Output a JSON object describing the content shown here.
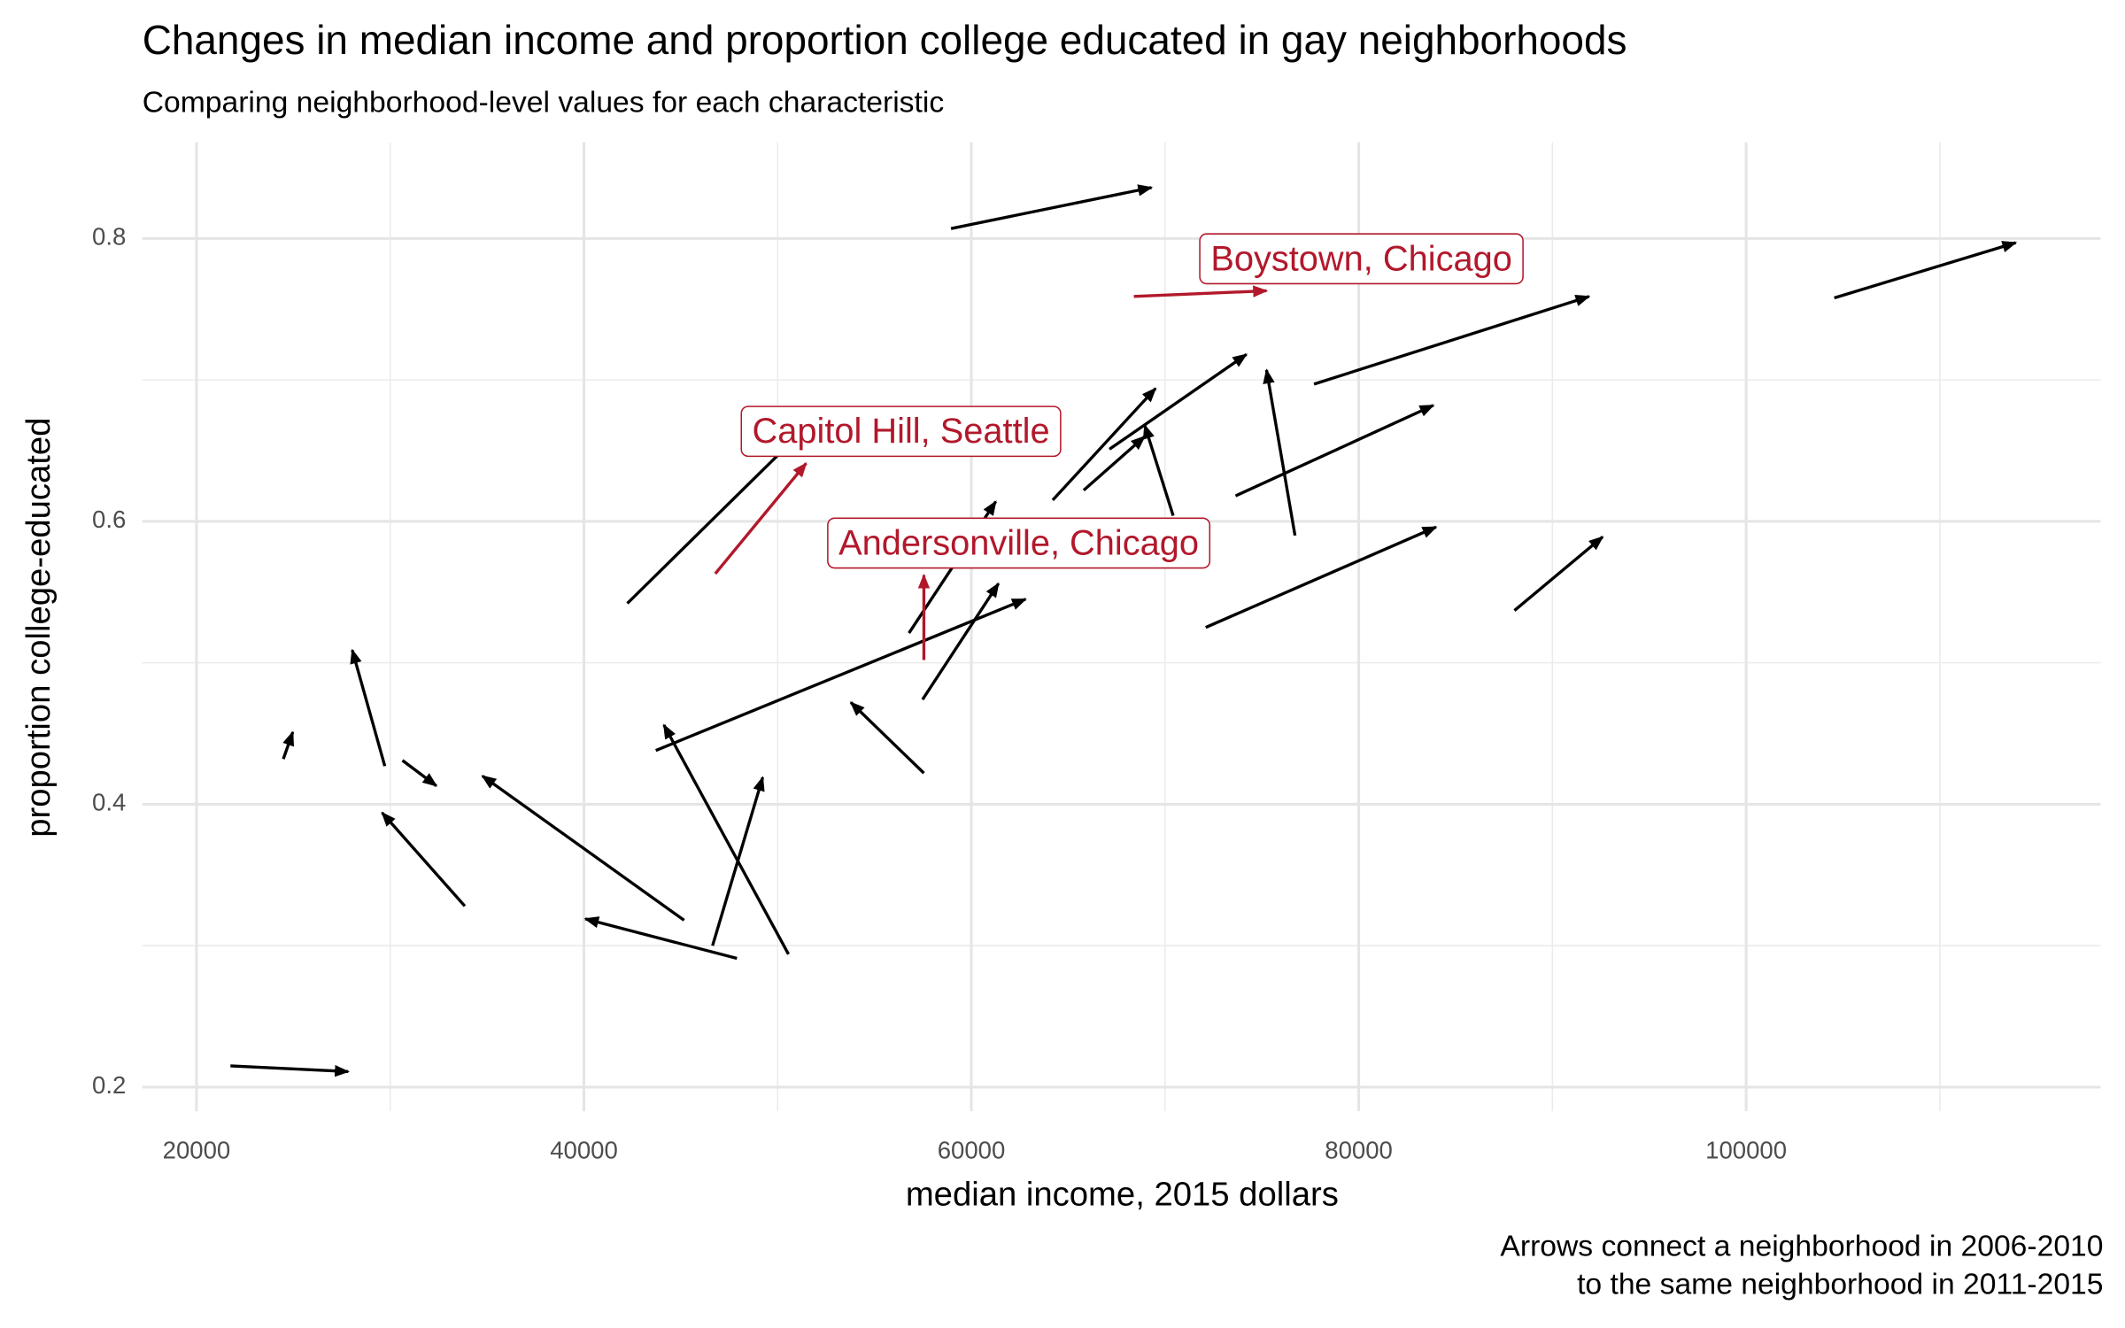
{
  "chart_data": {
    "type": "arrow",
    "title": "Changes in median income and proportion college educated in gay neighborhoods",
    "subtitle": "Comparing neighborhood-level values for each characteristic",
    "x_label": "median income, 2015 dollars",
    "y_label": "proportion college-educated",
    "caption": [
      "Arrows connect a neighborhood in 2006-2010",
      "to the same neighborhood in 2011-2015"
    ],
    "xlim": [
      17200,
      118300
    ],
    "ylim": [
      0.183,
      0.868
    ],
    "xticks": [
      20000,
      40000,
      60000,
      80000,
      100000
    ],
    "yticks": [
      0.2,
      0.4,
      0.6,
      0.8
    ],
    "x_minor_grid": [
      30000,
      50000,
      70000,
      90000,
      110000
    ],
    "y_minor_grid": [
      0.3,
      0.5,
      0.7
    ],
    "grid": true,
    "series": [
      {
        "color": "#000000",
        "x_start": [
          58950,
          21750,
          24480,
          29720,
          30630,
          33850,
          45170,
          47900,
          46640,
          50560,
          42240,
          57550,
          43710,
          57480,
          56780,
          64200,
          67130,
          65800,
          70420,
          76710,
          73640,
          77690,
          72100,
          88040,
          104550
        ],
        "y_start": [
          0.807,
          0.215,
          0.432,
          0.427,
          0.431,
          0.328,
          0.318,
          0.291,
          0.3,
          0.294,
          0.542,
          0.422,
          0.438,
          0.474,
          0.521,
          0.615,
          0.651,
          0.622,
          0.604,
          0.59,
          0.618,
          0.697,
          0.525,
          0.537,
          0.758
        ],
        "x_end": [
          69300,
          27830,
          24970,
          28040,
          32380,
          29580,
          34760,
          40070,
          49230,
          44130,
          50770,
          53780,
          62800,
          61400,
          61260,
          69510,
          74200,
          68950,
          68950,
          75240,
          83850,
          91890,
          83990,
          92590,
          113920
        ],
        "y_end": [
          0.836,
          0.211,
          0.451,
          0.509,
          0.413,
          0.394,
          0.42,
          0.319,
          0.419,
          0.456,
          0.657,
          0.472,
          0.545,
          0.556,
          0.614,
          0.694,
          0.718,
          0.66,
          0.668,
          0.707,
          0.682,
          0.759,
          0.596,
          0.589,
          0.797
        ]
      },
      {
        "color": "#b2182b",
        "labels": [
          "Capitol Hill, Seattle",
          "Andersonville, Chicago",
          "Boystown, Chicago"
        ],
        "x_start": [
          46780,
          57550,
          68390
        ],
        "y_start": [
          0.563,
          0.502,
          0.759
        ],
        "x_end": [
          51470,
          57550,
          75240
        ],
        "y_end": [
          0.641,
          0.562,
          0.763
        ]
      }
    ]
  }
}
